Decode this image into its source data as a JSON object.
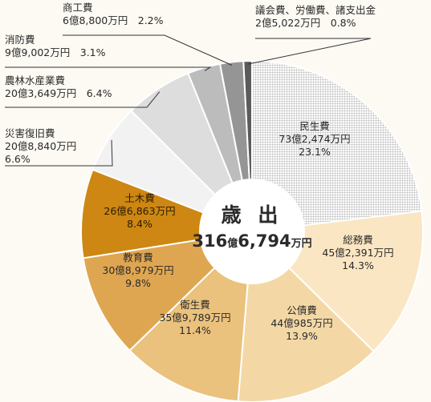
{
  "chart_data": {
    "type": "pie",
    "style": "donut",
    "title": "",
    "center_label": "歳 出",
    "total": {
      "main": "316",
      "unit1": "億",
      "rest": "6,794",
      "unit2": "万円"
    },
    "slices": [
      {
        "name": "民生費",
        "amount": "73億2,474万円",
        "percent": "23.1%",
        "value": 23.1,
        "color": "#ffffff",
        "pattern": "grid"
      },
      {
        "name": "総務費",
        "amount": "45億2,391万円",
        "percent": "14.3%",
        "value": 14.3,
        "color": "#fbe6c3"
      },
      {
        "name": "公債費",
        "amount": "44億985万円",
        "percent": "13.9%",
        "value": 13.9,
        "color": "#f3d8a6"
      },
      {
        "name": "衛生費",
        "amount": "35億9,789万円",
        "percent": "11.4%",
        "value": 11.4,
        "color": "#eac27d"
      },
      {
        "name": "教育費",
        "amount": "30億8,979万円",
        "percent": "9.8%",
        "value": 9.8,
        "color": "#dfa652"
      },
      {
        "name": "土木費",
        "amount": "26億6,863万円",
        "percent": "8.4%",
        "value": 8.4,
        "color": "#cd8712"
      },
      {
        "name": "災害復旧費",
        "amount": "20億8,840万円",
        "percent": "6.6%",
        "value": 6.6,
        "color": "#f2f2f2"
      },
      {
        "name": "農林水産業費",
        "amount": "20億3,649万円",
        "percent": "6.4%",
        "value": 6.4,
        "color": "#dddddd"
      },
      {
        "name": "消防費",
        "amount": "9億9,002万円",
        "percent": "3.1%",
        "value": 3.1,
        "color": "#bcbcbc"
      },
      {
        "name": "商工費",
        "amount": "6億8,800万円",
        "percent": "2.2%",
        "value": 2.2,
        "color": "#959595"
      },
      {
        "name": "議会費、労働費、諸支出金",
        "amount": "2億5,022万円",
        "percent": "0.8%",
        "value": 0.8,
        "color": "#5b5b5b"
      }
    ]
  }
}
